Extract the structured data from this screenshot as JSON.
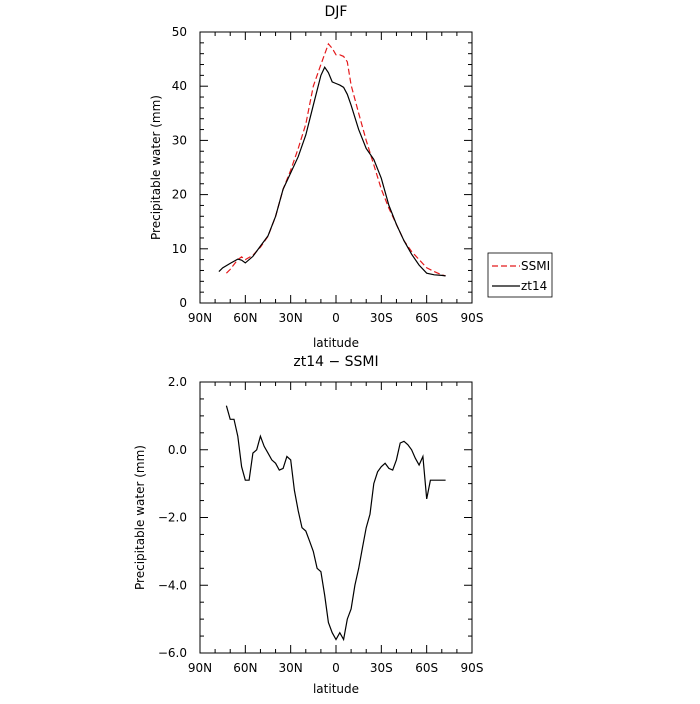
{
  "chart_data": [
    {
      "type": "line",
      "title": "DJF",
      "xlabel": "latitude",
      "ylabel": "Precipitable water (mm)",
      "xlim": [
        90,
        -90
      ],
      "ylim": [
        0,
        50
      ],
      "x_tick_labels": [
        "90N",
        "60N",
        "30N",
        "0",
        "30S",
        "60S",
        "90S"
      ],
      "y_tick_labels": [
        "0",
        "10",
        "20",
        "30",
        "40",
        "50"
      ],
      "legend_position": "right",
      "series": [
        {
          "name": "SSMI",
          "color": "#e41a1c",
          "dash": "dashed",
          "x": [
            72.5,
            70,
            65,
            62.5,
            60,
            55,
            50,
            45,
            40,
            35,
            30,
            25,
            20,
            15,
            10,
            5,
            2.5,
            0,
            -2.5,
            -5,
            -7.5,
            -10,
            -15,
            -20,
            -25,
            -30,
            -35,
            -40,
            -45,
            -50,
            -55,
            -60,
            -65,
            -70,
            -72.5
          ],
          "y": [
            5.5,
            6.2,
            8.0,
            8.5,
            8.0,
            8.8,
            10.3,
            12.3,
            16.0,
            21.0,
            24.5,
            28.5,
            33.0,
            40.0,
            44.0,
            47.8,
            47.0,
            45.8,
            45.8,
            45.5,
            44.5,
            40.2,
            35.0,
            30.0,
            25.5,
            21.0,
            17.5,
            14.5,
            11.5,
            9.5,
            8.0,
            6.5,
            5.8,
            5.2,
            5.0
          ]
        },
        {
          "name": "zt14",
          "color": "#000000",
          "dash": "solid",
          "x": [
            77.5,
            75,
            70,
            65,
            62.5,
            60,
            55,
            50,
            45,
            40,
            35,
            30,
            25,
            20,
            15,
            10,
            7.5,
            5,
            2.5,
            0,
            -2.5,
            -5,
            -7.5,
            -10,
            -15,
            -20,
            -25,
            -30,
            -35,
            -40,
            -45,
            -50,
            -55,
            -60,
            -65,
            -70,
            -72.5
          ],
          "y": [
            5.8,
            6.5,
            7.3,
            8.1,
            7.9,
            7.4,
            8.6,
            10.5,
            12.4,
            16.0,
            21.0,
            24.0,
            27.0,
            31.0,
            36.5,
            42.0,
            43.5,
            42.5,
            40.8,
            40.5,
            40.2,
            39.8,
            38.5,
            36.5,
            32.0,
            28.5,
            26.5,
            23.0,
            18.0,
            14.5,
            11.5,
            9.0,
            7.0,
            5.5,
            5.2,
            5.1,
            5.0
          ]
        }
      ]
    },
    {
      "type": "line",
      "title": "zt14 − SSMI",
      "xlabel": "latitude",
      "ylabel": "Precipitable water (mm)",
      "xlim": [
        90,
        -90
      ],
      "ylim": [
        -6.0,
        2.0
      ],
      "x_tick_labels": [
        "90N",
        "60N",
        "30N",
        "0",
        "30S",
        "60S",
        "90S"
      ],
      "y_tick_labels": [
        "−6.0",
        "−4.0",
        "−2.0",
        "0.0",
        "2.0"
      ],
      "series": [
        {
          "color": "#000000",
          "x": [
            72.5,
            70,
            67.5,
            65,
            62.5,
            60,
            57.5,
            55,
            52.5,
            50,
            47.5,
            45,
            42.5,
            40,
            37.5,
            35,
            32.5,
            30,
            27.5,
            25,
            22.5,
            20,
            17.5,
            15,
            12.5,
            10,
            7.5,
            5,
            2.5,
            0,
            -2.5,
            -5,
            -7.5,
            -10,
            -12.5,
            -15,
            -17.5,
            -20,
            -22.5,
            -25,
            -27.5,
            -30,
            -32.5,
            -35,
            -37.5,
            -40,
            -42.5,
            -45,
            -47.5,
            -50,
            -52.5,
            -55,
            -57.5,
            -60,
            -62.5,
            -65,
            -67.5,
            -70,
            -72.5
          ],
          "y": [
            1.3,
            0.9,
            0.9,
            0.4,
            -0.5,
            -0.9,
            -0.9,
            -0.1,
            0.0,
            0.4,
            0.1,
            -0.1,
            -0.3,
            -0.4,
            -0.6,
            -0.55,
            -0.2,
            -0.3,
            -1.2,
            -1.8,
            -2.3,
            -2.4,
            -2.7,
            -3.0,
            -3.5,
            -3.6,
            -4.3,
            -5.1,
            -5.4,
            -5.6,
            -5.4,
            -5.6,
            -5.0,
            -4.7,
            -4.0,
            -3.5,
            -2.9,
            -2.3,
            -1.9,
            -1.0,
            -0.65,
            -0.5,
            -0.4,
            -0.55,
            -0.6,
            -0.3,
            0.2,
            0.25,
            0.15,
            0.0,
            -0.25,
            -0.45,
            -0.2,
            -1.45,
            -0.9,
            -0.9,
            -0.9,
            -0.9,
            -0.9
          ]
        }
      ]
    }
  ]
}
